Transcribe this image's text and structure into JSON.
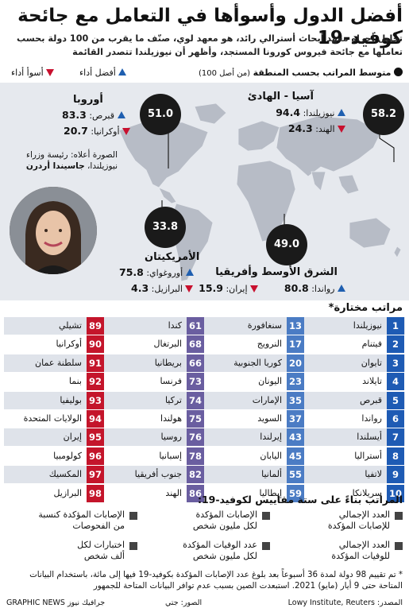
{
  "title": "أفضل الدول وأسوأها في التعامل مع جائحة كوفيد-19",
  "subtitle": "تحليل أجراه معهد أبحاث أسترالي رائد، هو معهد لوي، صنّف ما يقرب من 100 دولة بحسب تعاملها مع جائحة فيروس كورونا المستجد، وأظهر أن نيوزيلندا تتصدر القائمة",
  "legend": {
    "avg_label": "متوسط المراتب بحسب المنطقة",
    "avg_note": "(من أصل 100)",
    "best_label": "أفضل أداء",
    "worst_label": "أسوأ أداء"
  },
  "regions": {
    "asia": {
      "name": "آسيا - الهادئ",
      "avg": "58.2",
      "best_country": "نيوزيلندا:",
      "best_value": "94.4",
      "worst_country": "الهند:",
      "worst_value": "24.3"
    },
    "europe": {
      "name": "أوروبا",
      "avg": "51.0",
      "best_country": "قبرص:",
      "best_value": "83.3",
      "worst_country": "أوكرانيا:",
      "worst_value": "20.7"
    },
    "americas": {
      "name": "الأمريكيتان",
      "avg": "33.8",
      "best_country": "أوروغواي:",
      "best_value": "75.8",
      "worst_country": "البرازيل:",
      "worst_value": "4.3"
    },
    "mea": {
      "name": "الشرق الأوسط وأفريقيا",
      "avg": "49.0",
      "best_country": "رواندا:",
      "best_value": "80.8",
      "worst_country": "إيران:",
      "worst_value": "15.9"
    }
  },
  "photo_caption": {
    "line1": "الصورة أعلاه: رئيسة وزراء",
    "line2": "نيوزيلندا،",
    "name": "جاسيندا أردرن"
  },
  "ranks_title": "مراتب مختارة*",
  "ranks": [
    [
      {
        "n": "1",
        "c": "نيوزيلندا"
      },
      {
        "n": "13",
        "c": "سنغافورة"
      },
      {
        "n": "61",
        "c": "كندا"
      },
      {
        "n": "89",
        "c": "تشيلي"
      }
    ],
    [
      {
        "n": "2",
        "c": "فيتنام"
      },
      {
        "n": "17",
        "c": "النرويج"
      },
      {
        "n": "68",
        "c": "البرتغال"
      },
      {
        "n": "90",
        "c": "أوكرانيا"
      }
    ],
    [
      {
        "n": "3",
        "c": "تايوان"
      },
      {
        "n": "20",
        "c": "كوريا الجنوبية"
      },
      {
        "n": "66",
        "c": "بريطانيا"
      },
      {
        "n": "91",
        "c": "سلطنة عمان"
      }
    ],
    [
      {
        "n": "4",
        "c": "تايلاند"
      },
      {
        "n": "23",
        "c": "اليونان"
      },
      {
        "n": "73",
        "c": "فرنسا"
      },
      {
        "n": "92",
        "c": "بنما"
      }
    ],
    [
      {
        "n": "5",
        "c": "قبرص"
      },
      {
        "n": "35",
        "c": "الإمارات"
      },
      {
        "n": "74",
        "c": "تركيا"
      },
      {
        "n": "93",
        "c": "بوليفيا"
      }
    ],
    [
      {
        "n": "6",
        "c": "رواندا"
      },
      {
        "n": "37",
        "c": "السويد"
      },
      {
        "n": "75",
        "c": "هولندا"
      },
      {
        "n": "94",
        "c": "الولايات المتحدة"
      }
    ],
    [
      {
        "n": "7",
        "c": "أيسلندا"
      },
      {
        "n": "43",
        "c": "إيرلندا"
      },
      {
        "n": "76",
        "c": "روسيا"
      },
      {
        "n": "95",
        "c": "إيران"
      }
    ],
    [
      {
        "n": "8",
        "c": "أستراليا"
      },
      {
        "n": "45",
        "c": "اليابان"
      },
      {
        "n": "78",
        "c": "إسبانيا"
      },
      {
        "n": "96",
        "c": "كولومبيا"
      }
    ],
    [
      {
        "n": "9",
        "c": "لاتفيا"
      },
      {
        "n": "55",
        "c": "ألمانيا"
      },
      {
        "n": "82",
        "c": "جنوب أفريقيا"
      },
      {
        "n": "97",
        "c": "المكسيك"
      }
    ],
    [
      {
        "n": "10",
        "c": "سريلانكا"
      },
      {
        "n": "59",
        "c": "إيطاليا"
      },
      {
        "n": "86",
        "c": "الهند"
      },
      {
        "n": "98",
        "c": "البرازيل"
      }
    ]
  ],
  "rank_colors": [
    "#1e5bb4",
    "#4b7cc4",
    "#6a5ea0",
    "#c4152b"
  ],
  "measures_title": "المراتب بناءً على ستة مقاييس لكوفيد-19:",
  "measures": [
    {
      "a": "العدد الإجمالي",
      "b": "للإصابات المؤكدة"
    },
    {
      "a": "الإصابات المؤكدة",
      "b": "لكل مليون شخص"
    },
    {
      "a": "الإصابات المؤكدة كنسبة",
      "b": "من الفحوصات"
    },
    {
      "a": "العدد الإجمالي",
      "b": "للوفيات المؤكدة"
    },
    {
      "a": "عدد الوفيات المؤكدة",
      "b": "لكل مليون شخص"
    },
    {
      "a": "اختبارات لكل",
      "b": "ألف شخص"
    }
  ],
  "footnote": "* تم تقييم 98 دولة لمدة 36 أسبوعاً بعد بلوغ عدد الإصابات المؤكدة بكوفيد-19 فيها إلى مائة، باستخدام البيانات المتاحة حتى 9 أيار (مايو) 2021. استبعدت الصين بسبب عدم توافر البيانات المتاحة للجمهور",
  "source": "المصدر: Lowy Institute, Reuters",
  "photo_credit": "الصور: جتي",
  "brand": "GRAPHIC NEWS جرافيك نيوز",
  "watermark": "GRAPHIC NEWS"
}
